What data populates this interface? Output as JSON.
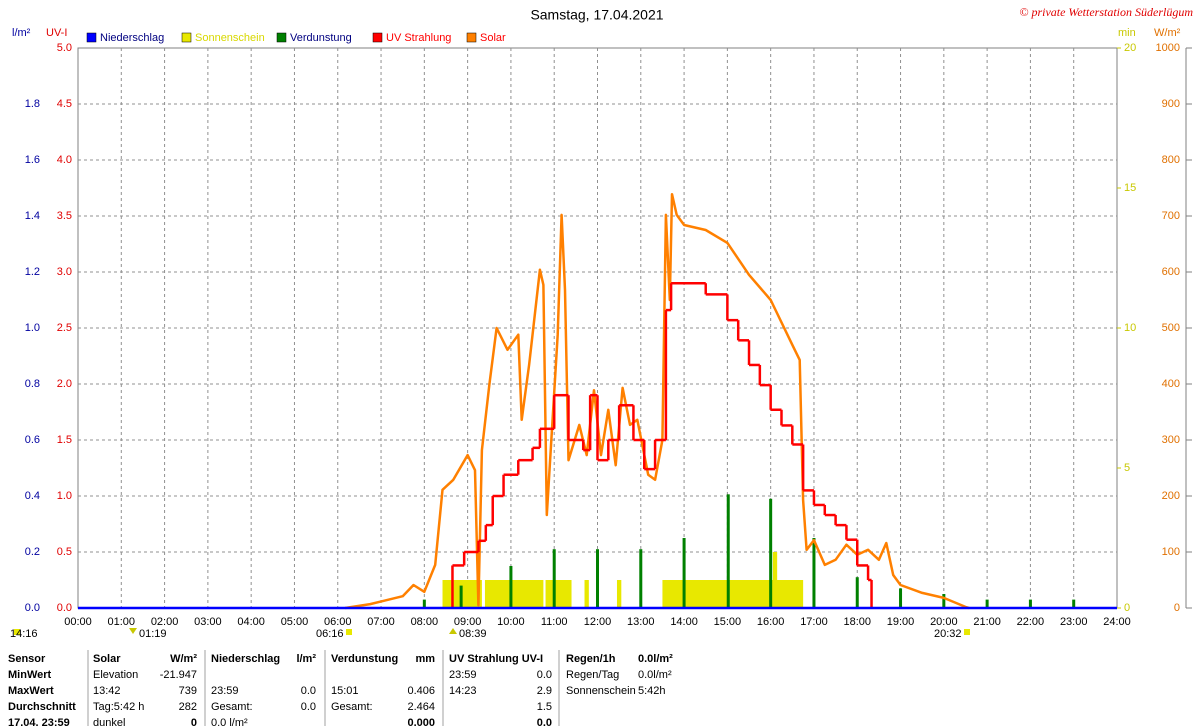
{
  "chart_data": {
    "type": "line",
    "title": "Samstag, 17.04.2021",
    "credit": "© private Wetterstation Süderlügum",
    "grid": true,
    "xlim": [
      0,
      24
    ],
    "xticks": [
      {
        "value": 0,
        "label": "00:00"
      },
      {
        "value": 1,
        "label": "01:00"
      },
      {
        "value": 2,
        "label": "02:00"
      },
      {
        "value": 3,
        "label": "03:00"
      },
      {
        "value": 4,
        "label": "04:00"
      },
      {
        "value": 5,
        "label": "05:00"
      },
      {
        "value": 6,
        "label": "06:00"
      },
      {
        "value": 7,
        "label": "07:00"
      },
      {
        "value": 8,
        "label": "08:00"
      },
      {
        "value": 9,
        "label": "09:00"
      },
      {
        "value": 10,
        "label": "10:00"
      },
      {
        "value": 11,
        "label": "11:00"
      },
      {
        "value": 12,
        "label": "12:00"
      },
      {
        "value": 13,
        "label": "13:00"
      },
      {
        "value": 14,
        "label": "14:00"
      },
      {
        "value": 15,
        "label": "15:00"
      },
      {
        "value": 16,
        "label": "16:00"
      },
      {
        "value": 17,
        "label": "17:00"
      },
      {
        "value": 18,
        "label": "18:00"
      },
      {
        "value": 19,
        "label": "19:00"
      },
      {
        "value": 20,
        "label": "20:00"
      },
      {
        "value": 21,
        "label": "21:00"
      },
      {
        "value": 22,
        "label": "22:00"
      },
      {
        "value": 23,
        "label": "23:00"
      },
      {
        "value": 24,
        "label": "24:00"
      }
    ],
    "y_label": "l/m²",
    "ylim": [
      0,
      2
    ],
    "yticks": [
      {
        "value": 0,
        "label": "0.0"
      },
      0.2,
      0.4,
      0.6,
      0.8,
      {
        "value": 1,
        "label": "1.0"
      },
      1.2,
      1.4,
      1.6,
      1.8
    ],
    "uv_label": "UV-I",
    "uvlim": [
      0,
      5
    ],
    "uvticks": [
      {
        "value": 0,
        "label": "0.0"
      },
      0.5,
      {
        "value": 1,
        "label": "1.0"
      },
      1.5,
      {
        "value": 2,
        "label": "2.0"
      },
      2.5,
      {
        "value": 3,
        "label": "3.0"
      },
      3.5,
      {
        "value": 4,
        "label": "4.0"
      },
      4.5,
      {
        "value": 5,
        "label": "5.0"
      }
    ],
    "y2_label": "min",
    "y2lim": [
      0,
      20
    ],
    "y2ticks": [
      0,
      5,
      10,
      15,
      20
    ],
    "y3_label": "W/m²",
    "y3lim": [
      0,
      1000
    ],
    "y3ticks": [
      0,
      100,
      200,
      300,
      400,
      500,
      600,
      700,
      800,
      900,
      1000
    ],
    "series": [
      {
        "name": "Niederschlag",
        "color": "#0000ff",
        "label_color": "#000080",
        "kind": "line",
        "axis": "y",
        "x": [
          0,
          24
        ],
        "values": [
          0,
          0
        ]
      },
      {
        "name": "Sonnenschein",
        "color": "#e8e800",
        "label_color": "#d8d800",
        "kind": "span",
        "axis": "y2",
        "x": [
          8.42,
          9.4,
          10.8,
          11.7,
          12.45,
          13.5,
          16.05
        ],
        "x_end": [
          9.33,
          10.75,
          11.4,
          11.8,
          12.55,
          16.75,
          16.15
        ],
        "values": [
          1,
          1,
          1,
          1,
          1,
          1,
          2
        ]
      },
      {
        "name": "Verdunstung",
        "color": "#008000",
        "label_color": "#000080",
        "kind": "spike",
        "axis": "y",
        "x": [
          8.0,
          8.85,
          10.0,
          11.0,
          12.0,
          13.0,
          14.0,
          15.02,
          16.0,
          17.0,
          18.0,
          19.0,
          20.0,
          21.0,
          22.0,
          23.0
        ],
        "values": [
          0.03,
          0.08,
          0.15,
          0.21,
          0.21,
          0.21,
          0.25,
          0.406,
          0.39,
          0.25,
          0.11,
          0.07,
          0.05,
          0.03,
          0.03,
          0.03
        ]
      },
      {
        "name": "Solar",
        "color": "#ff8000",
        "label_color": "#ff0000",
        "kind": "line",
        "axis": "y3",
        "x": [
          6.17,
          6.75,
          7.5,
          7.75,
          8.0,
          8.25,
          8.42,
          8.67,
          9.0,
          9.17,
          9.25,
          9.33,
          9.5,
          9.67,
          9.92,
          10.17,
          10.25,
          10.42,
          10.67,
          10.75,
          10.83,
          11.08,
          11.17,
          11.25,
          11.33,
          11.58,
          11.75,
          11.92,
          12.08,
          12.25,
          12.42,
          12.58,
          12.75,
          12.92,
          13.17,
          13.33,
          13.5,
          13.58,
          13.67,
          13.72,
          13.83,
          14.0,
          14.5,
          15.0,
          15.5,
          16.0,
          16.5,
          16.67,
          16.75,
          16.83,
          17.0,
          17.25,
          17.5,
          17.75,
          18.0,
          18.25,
          18.5,
          18.67,
          18.83,
          19.0,
          19.5,
          20.0,
          20.5,
          20.58
        ],
        "values": [
          0,
          7,
          21,
          41,
          29,
          77,
          211,
          229,
          273,
          246,
          5,
          282,
          398,
          500,
          461,
          488,
          336,
          434,
          604,
          577,
          166,
          488,
          702,
          568,
          264,
          327,
          273,
          389,
          273,
          354,
          255,
          393,
          327,
          336,
          238,
          229,
          300,
          702,
          550,
          739,
          702,
          684,
          675,
          652,
          595,
          550,
          470,
          443,
          193,
          104,
          121,
          77,
          86,
          113,
          95,
          104,
          86,
          116,
          59,
          41,
          27,
          18,
          2,
          0
        ]
      },
      {
        "name": "UV Strahlung",
        "color": "#ff0000",
        "label_color": "#ff0000",
        "kind": "step",
        "axis": "uv",
        "x": [
          8.65,
          8.92,
          9.25,
          9.42,
          9.58,
          9.83,
          10.17,
          10.5,
          10.67,
          10.92,
          11.0,
          11.33,
          11.67,
          11.83,
          12.0,
          12.25,
          12.5,
          12.83,
          13.08,
          13.33,
          13.58,
          13.7,
          14.5,
          15.0,
          15.25,
          15.5,
          15.75,
          16.0,
          16.25,
          16.5,
          16.75,
          17.0,
          17.25,
          17.5,
          17.75,
          18.0,
          18.25,
          18.33
        ],
        "values": [
          0.38,
          0.5,
          0.6,
          0.74,
          1.0,
          1.19,
          1.32,
          1.43,
          1.6,
          1.6,
          1.9,
          1.5,
          1.41,
          1.9,
          1.32,
          1.5,
          1.81,
          1.5,
          1.24,
          1.5,
          2.66,
          2.9,
          2.8,
          2.57,
          2.39,
          2.17,
          1.99,
          1.77,
          1.63,
          1.46,
          1.05,
          0.92,
          0.83,
          0.74,
          0.61,
          0.38,
          0.25,
          0
        ]
      }
    ],
    "markers": [
      "14:16",
      "01:19",
      "06:16",
      "08:39",
      "20:32"
    ]
  },
  "table": {
    "header": [
      "Sensor",
      "Solar",
      "W/m²",
      "Niederschlag",
      "l/m²",
      "Verdunstung",
      "mm",
      "UV Strahlung UV-I",
      null,
      "Regen/1h",
      "0.0l/m²"
    ],
    "rows": [
      [
        "MinWert",
        "Elevation",
        "-21.947",
        null,
        null,
        null,
        null,
        "23:59",
        "0.0",
        "Regen/Tag",
        "0.0l/m²"
      ],
      [
        "MaxWert",
        "13:42",
        "739",
        "23:59",
        "0.0",
        "15:01",
        "0.406",
        "14:23",
        "2.9",
        "Sonnenschein",
        "5:42h"
      ],
      [
        "Durchschnitt",
        "Tag:5:42 h",
        "282",
        "Gesamt:",
        "0.0",
        "Gesamt:",
        "2.464",
        null,
        "1.5",
        null,
        null
      ],
      [
        "17.04. 23:59",
        "dunkel",
        "0",
        "0.0 l/m²",
        null,
        null,
        "0.000",
        null,
        "0.0",
        null,
        null
      ]
    ]
  }
}
